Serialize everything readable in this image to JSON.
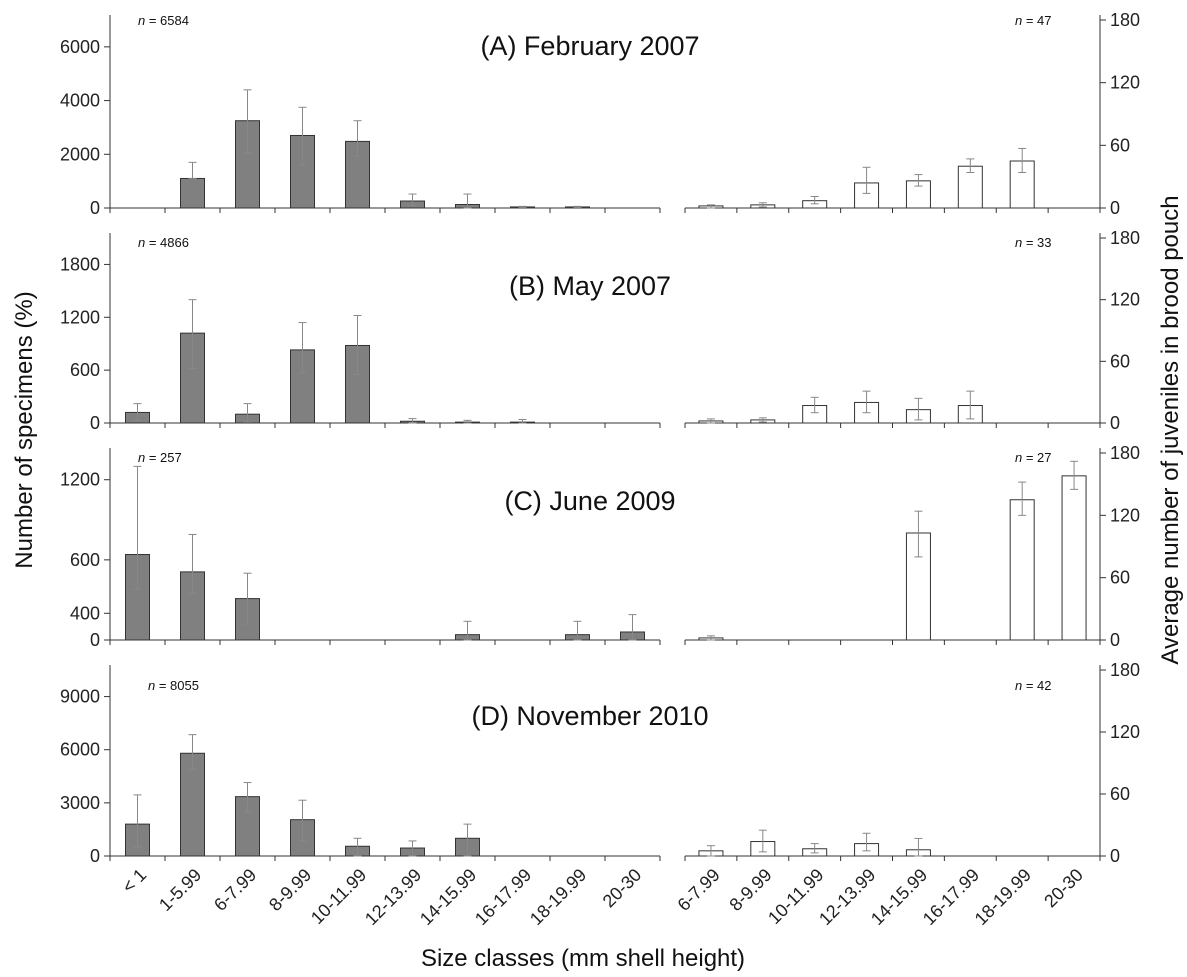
{
  "chart_data": {
    "type": "bar",
    "xlabel": "Size classes (mm shell height)",
    "ylabel_left": "Number of specimens (%)",
    "ylabel_right": "Average number of juveniles in brood pouch",
    "left_categories": [
      "< 1",
      "1-5.99",
      "6-7.99",
      "8-9.99",
      "10-11.99",
      "12-13.99",
      "14-15.99",
      "16-17.99",
      "18-19.99",
      "20-30"
    ],
    "right_categories": [
      "6-7.99",
      "8-9.99",
      "10-11.99",
      "12-13.99",
      "14-15.99",
      "16-17.99",
      "18-19.99",
      "20-30"
    ],
    "colors": {
      "left_bar": "#808080",
      "right_bar": "#ffffff",
      "edge": "#333333",
      "error_bar": "#888888"
    },
    "panels": [
      {
        "title": "(A) February 2007",
        "n_left_prefix": "n",
        "n_left_value": " = 6584",
        "n_right_prefix": "n",
        "n_right_value": " = 47",
        "left_ticks": [
          "0",
          "2000",
          "4000",
          "6000"
        ],
        "left_ylim": [
          0,
          7000
        ],
        "right_ticks": [
          "0",
          "60",
          "120",
          "180"
        ],
        "right_ylim": [
          0,
          180
        ],
        "left_values": [
          0,
          1100,
          3250,
          2700,
          2480,
          260,
          130,
          40,
          40,
          0
        ],
        "left_err_low": [
          0,
          1100,
          2050,
          1600,
          1930,
          80,
          0,
          20,
          20,
          0
        ],
        "left_err_high": [
          0,
          1700,
          4400,
          3750,
          3250,
          520,
          520,
          60,
          60,
          0
        ],
        "right_values": [
          2,
          3,
          7,
          24,
          26,
          40,
          45,
          0
        ],
        "right_err_low": [
          0,
          1,
          4,
          14,
          21,
          34,
          34,
          0
        ],
        "right_err_high": [
          3,
          5,
          11,
          39,
          32,
          47,
          57,
          0
        ]
      },
      {
        "title": "(B) May 2007",
        "n_left_prefix": "n",
        "n_left_value": " = 4866",
        "n_right_prefix": "n",
        "n_right_value": " = 33",
        "left_ticks": [
          "0",
          "600",
          "1200",
          "1800"
        ],
        "left_ylim": [
          0,
          2100
        ],
        "right_ticks": [
          "0",
          "60",
          "120",
          "180"
        ],
        "right_ylim": [
          0,
          180
        ],
        "left_values": [
          120,
          1020,
          100,
          830,
          880,
          20,
          10,
          10,
          0,
          0
        ],
        "left_err_low": [
          30,
          620,
          10,
          570,
          550,
          0,
          0,
          0,
          0,
          0
        ],
        "left_err_high": [
          220,
          1400,
          220,
          1140,
          1220,
          50,
          30,
          40,
          0,
          0
        ],
        "right_values": [
          2,
          3,
          17,
          20,
          13,
          17,
          0,
          0
        ],
        "right_err_low": [
          0,
          1,
          10,
          10,
          3,
          4,
          0,
          0
        ],
        "right_err_high": [
          4,
          5,
          25,
          31,
          24,
          31,
          0,
          0
        ]
      },
      {
        "title": "(C) June 2009",
        "n_left_prefix": "n",
        "n_left_value": " = 257",
        "n_right_prefix": "n",
        "n_right_value": " = 27",
        "left_ticks": [
          "0",
          "400",
          "600",
          "1200"
        ],
        "left_ylim": [
          0,
          1400
        ],
        "right_ticks": [
          "0",
          "60",
          "120",
          "180"
        ],
        "right_ylim": [
          0,
          180
        ],
        "left_values": [
          640,
          510,
          310,
          0,
          0,
          0,
          40,
          0,
          40,
          60
        ],
        "left_err_low": [
          380,
          350,
          120,
          0,
          0,
          0,
          0,
          0,
          0,
          0
        ],
        "left_err_high": [
          1300,
          790,
          500,
          0,
          0,
          0,
          140,
          0,
          140,
          190
        ],
        "right_values": [
          2,
          0,
          0,
          0,
          103,
          0,
          135,
          158
        ],
        "right_err_low": [
          0,
          0,
          0,
          0,
          80,
          0,
          120,
          145
        ],
        "right_err_high": [
          4,
          0,
          0,
          0,
          124,
          0,
          152,
          172
        ]
      },
      {
        "title": "(D) November 2010",
        "n_left_prefix": "n",
        "n_left_value": " = 8055",
        "n_right_prefix": "n",
        "n_right_value": " = 42",
        "left_ticks": [
          "0",
          "3000",
          "6000",
          "9000"
        ],
        "left_ylim": [
          0,
          10500
        ],
        "right_ticks": [
          "0",
          "60",
          "120",
          "180"
        ],
        "right_ylim": [
          0,
          180
        ],
        "left_values": [
          1800,
          5800,
          3350,
          2050,
          550,
          450,
          1000,
          0,
          0,
          0
        ],
        "left_err_low": [
          500,
          4900,
          2500,
          850,
          0,
          0,
          0,
          0,
          0,
          0
        ],
        "left_err_high": [
          3450,
          6850,
          4150,
          3150,
          1000,
          850,
          1800,
          0,
          0,
          0
        ],
        "right_values": [
          5,
          14,
          7,
          12,
          6,
          0,
          0,
          0
        ],
        "right_err_low": [
          0,
          4,
          3,
          5,
          0,
          0,
          0,
          0
        ],
        "right_err_high": [
          10,
          25,
          12,
          22,
          17,
          0,
          0,
          0
        ]
      }
    ]
  }
}
